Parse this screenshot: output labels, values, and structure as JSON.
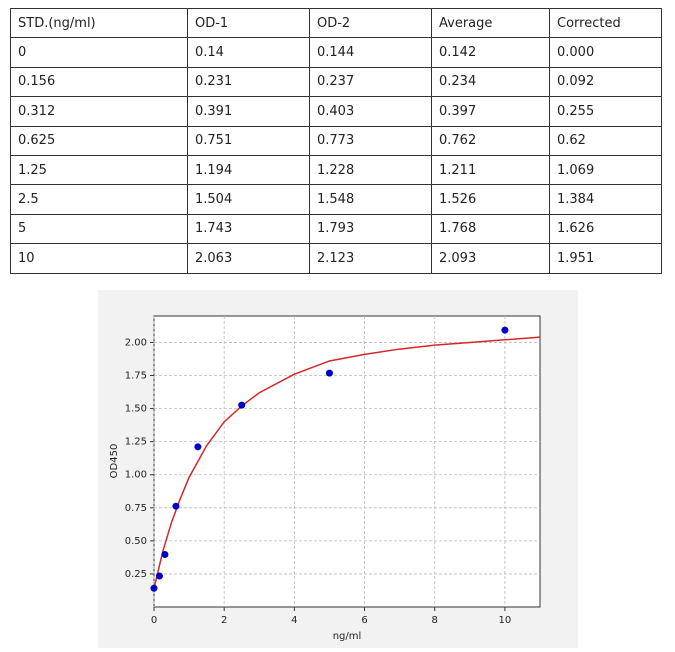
{
  "table": {
    "header": [
      "STD.(ng/ml)",
      "OD-1",
      "OD-2",
      "Average",
      "Corrected"
    ],
    "rows": [
      [
        "0",
        "0.14",
        "0.144",
        "0.142",
        "0.000"
      ],
      [
        "0.156",
        "0.231",
        "0.237",
        "0.234",
        "0.092"
      ],
      [
        "0.312",
        "0.391",
        "0.403",
        "0.397",
        "0.255"
      ],
      [
        "0.625",
        "0.751",
        "0.773",
        "0.762",
        "0.62"
      ],
      [
        "1.25",
        "1.194",
        "1.228",
        "1.211",
        "1.069"
      ],
      [
        "2.5",
        "1.504",
        "1.548",
        "1.526",
        "1.384"
      ],
      [
        "5",
        "1.743",
        "1.793",
        "1.768",
        "1.626"
      ],
      [
        "10",
        "2.063",
        "2.123",
        "2.093",
        "1.951"
      ]
    ]
  },
  "chart_data": {
    "type": "scatter",
    "xlabel": "ng/ml",
    "ylabel": "OD450",
    "points": {
      "color": "#0000cc",
      "x": [
        0,
        0.156,
        0.312,
        0.625,
        1.25,
        2.5,
        5,
        10
      ],
      "y": [
        0.142,
        0.234,
        0.397,
        0.762,
        1.211,
        1.526,
        1.768,
        2.093
      ]
    },
    "curve": {
      "color": "#d62728",
      "x": [
        0,
        0.25,
        0.5,
        0.75,
        1,
        1.5,
        2,
        2.5,
        3,
        4,
        5,
        6,
        7,
        8,
        9,
        10,
        11
      ],
      "y": [
        0.14,
        0.42,
        0.64,
        0.82,
        0.98,
        1.22,
        1.4,
        1.52,
        1.62,
        1.76,
        1.86,
        1.91,
        1.95,
        1.98,
        2.0,
        2.02,
        2.04
      ]
    },
    "xlim": [
      0,
      11
    ],
    "xticks": [
      0,
      2,
      4,
      6,
      8,
      10
    ],
    "ylim": [
      0,
      2.2
    ],
    "yticks": [
      0.25,
      {
        "value": 0.5,
        "label": "0.50"
      },
      0.75,
      {
        "value": 1,
        "label": "1.00"
      },
      1.25,
      {
        "value": 1.5,
        "label": "1.50"
      },
      1.75,
      {
        "value": 2,
        "label": "2.00"
      }
    ],
    "grid": true
  }
}
